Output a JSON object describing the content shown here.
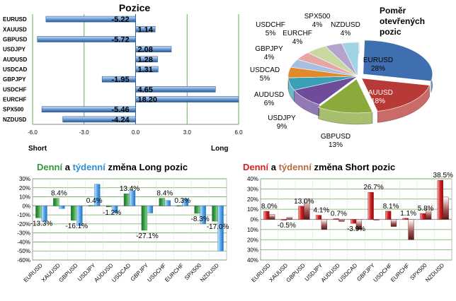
{
  "chart_data": [
    {
      "type": "bar",
      "orientation": "horizontal",
      "title": "Pozice",
      "xlabel_left": "Short",
      "xlabel_right": "Long",
      "xlim": [
        -6.0,
        6.0
      ],
      "xticks": [
        "-6.0",
        "-3.0",
        "0.0",
        "3.0",
        "6.0"
      ],
      "categories": [
        "EURUSD",
        "XAUUSD",
        "GBPUSD",
        "USDJPY",
        "AUDUSD",
        "USDCAD",
        "GBPJPY",
        "USDCHF",
        "EURCHF",
        "SPX500",
        "NZDUSD"
      ],
      "values": [
        -5.22,
        1.14,
        -5.72,
        2.08,
        1.28,
        1.31,
        -1.95,
        4.65,
        18.2,
        -5.46,
        -4.24
      ],
      "value_labels": [
        "-5.22",
        "1.14",
        "-5.72",
        "2.08",
        "1.28",
        "1.31",
        "-1.95",
        "4.65",
        "18.20",
        "-5.46",
        "-4.24"
      ],
      "grid": true
    },
    {
      "type": "pie",
      "title_lines": [
        "Poměr",
        "otevřených",
        "pozic"
      ],
      "labels": [
        "EURUSD",
        "XAUUSD",
        "GBPUSD",
        "USDJPY",
        "AUDUSD",
        "USDCAD",
        "GBPJPY",
        "EURCHF",
        "USDCHF",
        "SPX500",
        "NZDUSD"
      ],
      "values": [
        28,
        18,
        13,
        9,
        6,
        5,
        4,
        4,
        5,
        4,
        4
      ],
      "value_labels": [
        "28%",
        "18%",
        "13%",
        "9%",
        "6%",
        "5%",
        "4%",
        "4%",
        "5%",
        "4%",
        "4%"
      ],
      "colors": [
        "#3f6fb0",
        "#b83a36",
        "#8aaa3c",
        "#6e4c9a",
        "#3aa0b8",
        "#e08a2c",
        "#a8c0e0",
        "#e6a6a4",
        "#c8d8a0",
        "#b4a4cc",
        "#a0d4e4"
      ]
    },
    {
      "type": "bar",
      "title_parts": [
        "Denní",
        " a ",
        "týdenní",
        " změna Long pozic"
      ],
      "categories": [
        "EURUSD",
        "XAUUSD",
        "GBPUSD",
        "USDJPY",
        "AUDUSD",
        "USDCAD",
        "GBPJPY",
        "USDCHF",
        "EURCHF",
        "SPX500",
        "NZDUSD"
      ],
      "series": [
        {
          "values": [
            -13.3,
            8.4,
            -16.1,
            0.4,
            -1.2,
            13.4,
            -27.1,
            8.4,
            0.3,
            -8.3,
            -17.0
          ],
          "color": "#2e8b3a"
        },
        {
          "values": [
            -17.0,
            -3.0,
            -22.0,
            24.0,
            -8.0,
            17.0,
            -8.0,
            6.0,
            8.0,
            -20.0,
            -50.0
          ],
          "color": "#5aa0e0"
        }
      ],
      "value_labels": [
        "-13.3%",
        "8.4%",
        "-16.1%",
        "0.4%",
        "-1.2%",
        "13.4%",
        "-27.1%",
        "8.4%",
        "0.3%",
        "-8.3%",
        "-17.0%"
      ],
      "ylim": [
        -60,
        30
      ],
      "yticks": [
        "30%",
        "20%",
        "10%",
        "0%",
        "-10%",
        "-20%",
        "-30%",
        "-40%",
        "-50%",
        "-60%"
      ],
      "grid": true
    },
    {
      "type": "bar",
      "title_parts": [
        "Denní",
        " a ",
        "týdenní",
        " změna Short pozic"
      ],
      "categories": [
        "EURUSD",
        "XAUUSD",
        "GBPUSD",
        "USDJPY",
        "AUDUSD",
        "USDCAD",
        "GBPJPY",
        "USDCHF",
        "EURCHF",
        "SPX500",
        "NZDUSD"
      ],
      "series": [
        {
          "values": [
            8.0,
            -0.5,
            13.0,
            4.1,
            0.7,
            -3.9,
            26.7,
            8.1,
            1.1,
            5.8,
            38.5
          ],
          "color": "#c82020"
        },
        {
          "values": [
            5.0,
            2.0,
            20.0,
            -10.0,
            -2.0,
            -10.0,
            0.0,
            -7.0,
            -20.0,
            10.0,
            22.0
          ],
          "color": "#7a2a2a"
        }
      ],
      "value_labels": [
        "8.0%",
        "-0.5%",
        "13.0%",
        "4.1%",
        "0.7%",
        "-3.9%",
        "26.7%",
        "8.1%",
        "1.1%",
        "5.8%",
        "38.5%"
      ],
      "ylim": [
        -40,
        40
      ],
      "yticks": [
        "40%",
        "30%",
        "20%",
        "10%",
        "0%",
        "10%",
        "20%",
        "30%",
        "40%"
      ],
      "grid": true
    }
  ],
  "colors": {
    "daily_green": "#2e9a3c",
    "weekly_blue": "#2f8fd8",
    "daily_red": "#d42020",
    "weekly_brown": "#b86a3c",
    "grid_green": "#6aaa5a"
  }
}
